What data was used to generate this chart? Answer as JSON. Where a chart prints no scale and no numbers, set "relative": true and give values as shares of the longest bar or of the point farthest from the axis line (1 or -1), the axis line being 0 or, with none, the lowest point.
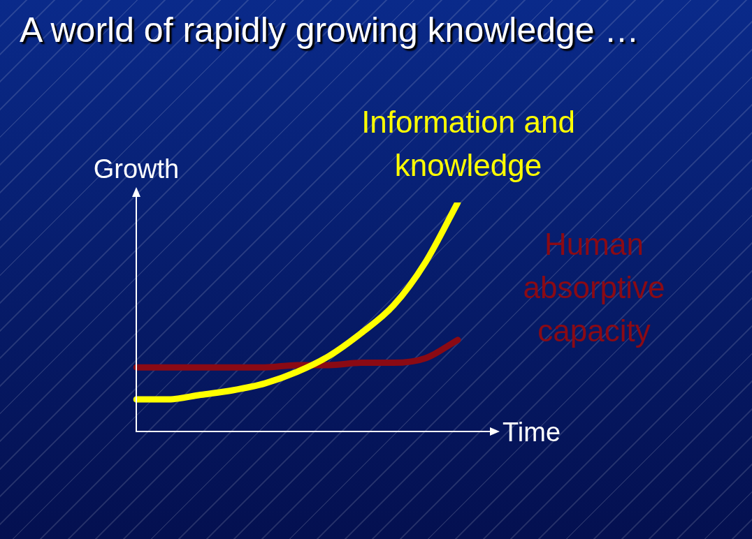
{
  "chart_data": {
    "type": "line",
    "title": "A world of rapidly growing knowledge …",
    "xlabel": "Time",
    "ylabel": "Growth",
    "relative": true,
    "legend": false,
    "marker": "none",
    "line_style": "solid",
    "categories": [
      null,
      null,
      null,
      null,
      null,
      null,
      null,
      null,
      null,
      null,
      null,
      null
    ],
    "series": [
      {
        "name": "Information and knowledge",
        "color": "#ffff00",
        "values": [
          0.14,
          0.14,
          0.16,
          0.18,
          0.21,
          0.26,
          0.33,
          0.43,
          0.55,
          0.74,
          1,
          null
        ]
      },
      {
        "name": "Human absorptive capacity",
        "color": "#8b0a14",
        "values": [
          0.28,
          0.28,
          0.28,
          0.28,
          0.28,
          0.29,
          0.29,
          0.3,
          0.3,
          0.32,
          0.4,
          null
        ]
      }
    ]
  }
}
